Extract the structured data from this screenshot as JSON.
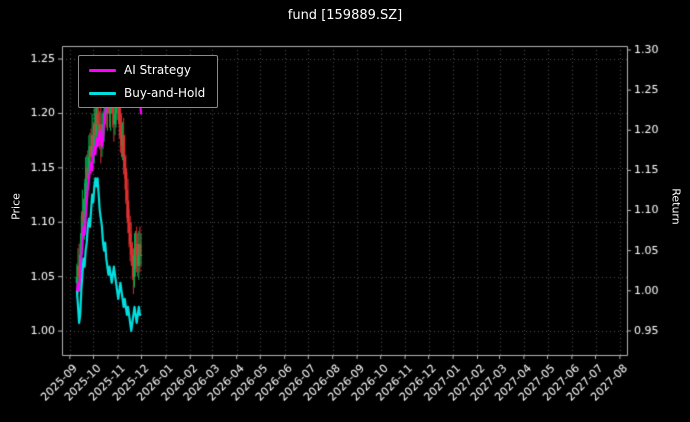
{
  "title": "fund [159889.SZ]",
  "chart_data": {
    "type": "line",
    "title": "fund [159889.SZ]",
    "left_axis": {
      "label": "Price",
      "ticks": [
        1.0,
        1.05,
        1.1,
        1.15,
        1.2,
        1.25
      ],
      "range": [
        0.978,
        1.262
      ]
    },
    "right_axis": {
      "label": "Return",
      "ticks": [
        0.95,
        1.0,
        1.05,
        1.1,
        1.15,
        1.2,
        1.25,
        1.3
      ],
      "range": [
        0.92,
        1.305
      ]
    },
    "x_axis": {
      "ticklabels": [
        "2025-09",
        "2025-10",
        "2025-11",
        "2025-12",
        "2026-01",
        "2026-02",
        "2026-03",
        "2026-04",
        "2026-05",
        "2026-06",
        "2026-07",
        "2026-08",
        "2026-09",
        "2026-10",
        "2026-11",
        "2026-12",
        "2027-01",
        "2027-02",
        "2027-03",
        "2027-04",
        "2027-05",
        "2027-06",
        "2027-07",
        "2027-08"
      ],
      "tick_days": [
        0,
        30,
        61,
        91,
        122,
        153,
        181,
        212,
        242,
        273,
        303,
        334,
        365,
        395,
        426,
        456,
        487,
        518,
        546,
        577,
        607,
        638,
        668,
        699
      ],
      "range_days": [
        -10,
        708
      ]
    },
    "grid": true,
    "legend_position": "upper-left",
    "legend": [
      {
        "label": "AI Strategy",
        "color": "#ff00ff"
      },
      {
        "label": "Buy-and-Hold",
        "color": "#00e0e0"
      }
    ],
    "data_start_day": 9,
    "data_day_step": 1.38,
    "series": [
      {
        "name": "AI Strategy",
        "axis": "right",
        "color": "#ff00ff",
        "width": 2.2,
        "values": [
          1.0,
          1.01,
          1.0,
          1.02,
          1.04,
          1.06,
          1.08,
          1.07,
          1.09,
          1.11,
          1.13,
          1.14,
          1.15,
          1.16,
          1.15,
          1.17,
          1.18,
          1.17,
          1.19,
          1.18,
          1.19,
          1.2,
          1.19,
          1.18,
          1.19,
          1.21,
          1.22,
          1.23,
          1.24,
          1.25,
          1.24,
          1.25,
          1.26,
          1.25,
          1.24,
          1.25,
          1.26,
          1.27,
          1.28,
          1.26,
          1.25,
          1.24,
          1.23,
          1.24,
          1.25,
          1.24,
          1.23,
          1.24,
          1.25,
          1.26,
          1.25,
          1.27,
          1.28,
          1.26,
          1.24,
          1.25,
          1.24,
          1.25,
          1.24,
          1.22
        ]
      },
      {
        "name": "Buy-and-Hold",
        "axis": "right",
        "color": "#00e0e0",
        "width": 2.2,
        "values": [
          1.0,
          0.98,
          0.96,
          0.97,
          1.0,
          1.02,
          1.04,
          1.03,
          1.05,
          1.06,
          1.08,
          1.09,
          1.08,
          1.1,
          1.12,
          1.11,
          1.13,
          1.14,
          1.13,
          1.14,
          1.12,
          1.1,
          1.09,
          1.08,
          1.06,
          1.05,
          1.06,
          1.04,
          1.03,
          1.02,
          1.03,
          1.02,
          1.01,
          1.02,
          1.03,
          1.02,
          1.01,
          1.0,
          0.99,
          1.0,
          1.01,
          1.0,
          0.99,
          0.98,
          0.99,
          0.98,
          0.97,
          0.98,
          0.97,
          0.96,
          0.95,
          0.96,
          0.97,
          0.98,
          0.97,
          0.96,
          0.97,
          0.98,
          0.97,
          0.97
        ]
      }
    ],
    "candles": {
      "axis": "left",
      "up_color": "#00b050",
      "down_color": "#e03030",
      "close": [
        1.05,
        1.06,
        1.05,
        1.07,
        1.09,
        1.11,
        1.1,
        1.12,
        1.14,
        1.15,
        1.14,
        1.16,
        1.17,
        1.16,
        1.18,
        1.17,
        1.19,
        1.18,
        1.2,
        1.19,
        1.18,
        1.19,
        1.17,
        1.18,
        1.19,
        1.2,
        1.21,
        1.2,
        1.22,
        1.21,
        1.2,
        1.21,
        1.22,
        1.2,
        1.19,
        1.2,
        1.21,
        1.22,
        1.21,
        1.19,
        1.18,
        1.17,
        1.18,
        1.16,
        1.15,
        1.13,
        1.12,
        1.1,
        1.09,
        1.08,
        1.07,
        1.06,
        1.05,
        1.07,
        1.08,
        1.07,
        1.06,
        1.08,
        1.07,
        1.07
      ]
    }
  },
  "style": {
    "background": "#000000",
    "text_color": "#ffffff",
    "grid_color": "#4f4f4f",
    "spine_color": "#b5b5b5"
  }
}
